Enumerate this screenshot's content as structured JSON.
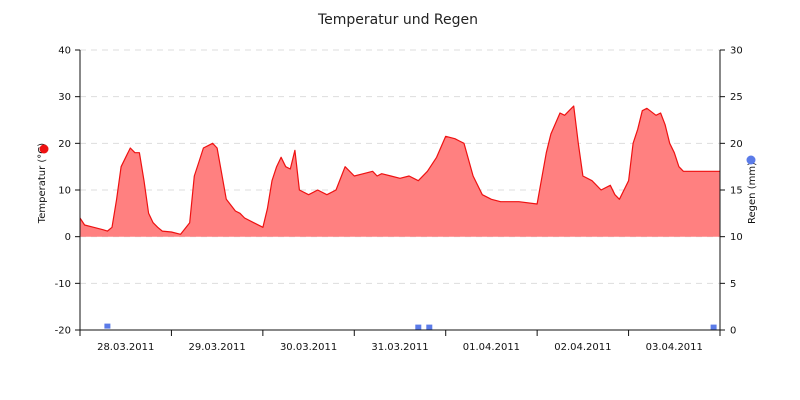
{
  "chart_data": {
    "type": "area",
    "title": "Temperatur und Regen",
    "y_left": {
      "label": "Temperatur (°C)",
      "min": -20,
      "max": 40,
      "ticks": [
        -20,
        -10,
        0,
        10,
        20,
        30,
        40
      ]
    },
    "y_right": {
      "label": "Regen (mm)",
      "min": 0,
      "max": 30,
      "ticks": [
        0,
        5,
        10,
        15,
        20,
        25,
        30
      ]
    },
    "x_domain": [
      0,
      7
    ],
    "x_tick_labels": [
      "28.03.2011",
      "29.03.2011",
      "30.03.2011",
      "31.03.2011",
      "01.04.2011",
      "02.04.2011",
      "03.04.2011"
    ],
    "grid": true,
    "series": [
      {
        "name": "Temperatur",
        "type": "area",
        "axis": "left",
        "color": "#ee1111",
        "fill": "#ff8080",
        "x": [
          0.0,
          0.05,
          0.15,
          0.25,
          0.3,
          0.35,
          0.4,
          0.45,
          0.5,
          0.55,
          0.6,
          0.65,
          0.7,
          0.75,
          0.8,
          0.85,
          0.9,
          1.0,
          1.1,
          1.2,
          1.25,
          1.3,
          1.35,
          1.4,
          1.45,
          1.5,
          1.6,
          1.7,
          1.75,
          1.8,
          1.9,
          2.0,
          2.05,
          2.1,
          2.15,
          2.2,
          2.25,
          2.3,
          2.35,
          2.4,
          2.5,
          2.6,
          2.7,
          2.8,
          2.9,
          3.0,
          3.1,
          3.2,
          3.25,
          3.3,
          3.4,
          3.5,
          3.6,
          3.7,
          3.8,
          3.9,
          4.0,
          4.1,
          4.15,
          4.2,
          4.3,
          4.4,
          4.5,
          4.6,
          4.7,
          4.8,
          5.0,
          5.1,
          5.15,
          5.25,
          5.3,
          5.35,
          5.4,
          5.45,
          5.5,
          5.6,
          5.7,
          5.8,
          5.85,
          5.9,
          5.95,
          6.0,
          6.05,
          6.1,
          6.15,
          6.2,
          6.3,
          6.35,
          6.4,
          6.45,
          6.5,
          6.55,
          6.6,
          6.7,
          6.8,
          6.9,
          7.0
        ],
        "y": [
          4,
          2.5,
          2,
          1.5,
          1.2,
          2,
          8,
          15,
          17,
          19,
          18,
          18,
          12,
          5,
          3,
          2,
          1.2,
          1,
          0.5,
          3,
          13,
          16,
          19,
          19.5,
          20,
          19,
          8,
          5.5,
          5,
          4,
          3,
          2,
          6,
          12,
          15,
          17,
          15,
          14.5,
          18.5,
          10,
          9,
          10,
          9,
          10,
          15,
          13,
          13.5,
          14,
          13,
          13.5,
          13,
          12.5,
          13,
          12,
          14,
          17,
          21.5,
          21,
          20.5,
          20,
          13,
          9,
          8,
          7.5,
          7.5,
          7.5,
          7,
          18,
          22,
          26.5,
          26,
          27,
          28,
          20,
          13,
          12,
          10,
          11,
          9,
          8,
          10,
          12,
          20,
          23,
          27,
          27.5,
          26,
          26.5,
          24,
          20,
          18,
          15,
          14,
          14,
          14,
          14,
          14
        ]
      },
      {
        "name": "Regen",
        "type": "scatter",
        "axis": "right",
        "color": "#5b7be8",
        "x": [
          0.3,
          3.7,
          3.82,
          6.93
        ],
        "y": [
          0.2,
          0.1,
          0.1,
          0.1
        ]
      }
    ]
  }
}
